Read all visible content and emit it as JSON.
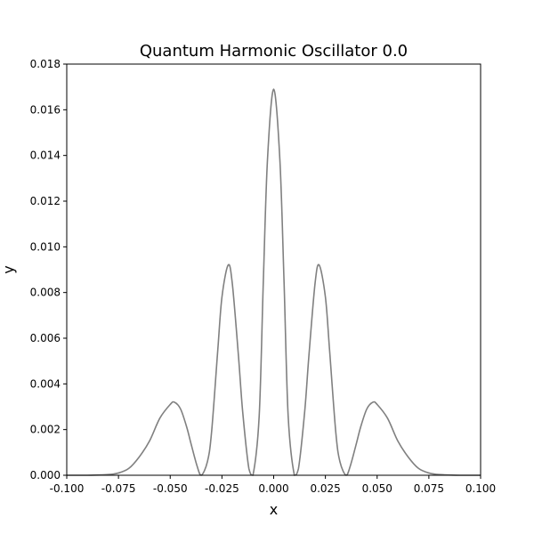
{
  "chart_data": {
    "type": "line",
    "title": "Quantum Harmonic Oscillator 0.0",
    "xlabel": "x",
    "ylabel": "y",
    "xlim": [
      -0.1,
      0.1
    ],
    "ylim": [
      0,
      0.018
    ],
    "grid": false,
    "x_ticks": [
      "-0.100",
      "-0.075",
      "-0.050",
      "-0.025",
      "0.000",
      "0.025",
      "0.050",
      "0.075",
      "0.100"
    ],
    "y_ticks": [
      "0.000",
      "0.002",
      "0.004",
      "0.006",
      "0.008",
      "0.010",
      "0.012",
      "0.014",
      "0.016",
      "0.018"
    ],
    "series": [
      {
        "color": "#808080",
        "x": [
          -0.1,
          -0.09,
          -0.08,
          -0.075,
          -0.07,
          -0.065,
          -0.06,
          -0.055,
          -0.05,
          -0.048,
          -0.045,
          -0.042,
          -0.04,
          -0.037,
          -0.035,
          -0.032,
          -0.03,
          -0.027,
          -0.025,
          -0.022,
          -0.02,
          -0.017,
          -0.015,
          -0.012,
          -0.01,
          -0.007,
          -0.005,
          -0.003,
          0.0,
          0.003,
          0.005,
          0.007,
          0.01,
          0.012,
          0.015,
          0.017,
          0.02,
          0.022,
          0.025,
          0.027,
          0.03,
          0.032,
          0.035,
          0.037,
          0.04,
          0.042,
          0.045,
          0.048,
          0.05,
          0.055,
          0.06,
          0.065,
          0.07,
          0.075,
          0.08,
          0.09,
          0.1
        ],
        "y": [
          0.0,
          0.0,
          3e-05,
          0.0001,
          0.0003,
          0.0008,
          0.0015,
          0.0025,
          0.0031,
          0.0032,
          0.0029,
          0.0021,
          0.0014,
          0.0004,
          0.0,
          0.0006,
          0.0019,
          0.0055,
          0.0078,
          0.0092,
          0.0084,
          0.0052,
          0.0028,
          0.0003,
          0.0,
          0.0026,
          0.0085,
          0.0138,
          0.0169,
          0.0138,
          0.0085,
          0.0026,
          0.0,
          0.0003,
          0.0028,
          0.0052,
          0.0084,
          0.0092,
          0.0078,
          0.0055,
          0.0019,
          0.0006,
          0.0,
          0.0004,
          0.0014,
          0.0021,
          0.0029,
          0.0032,
          0.0031,
          0.0025,
          0.0015,
          0.0008,
          0.0003,
          0.0001,
          3e-05,
          0.0,
          0.0
        ]
      }
    ]
  }
}
